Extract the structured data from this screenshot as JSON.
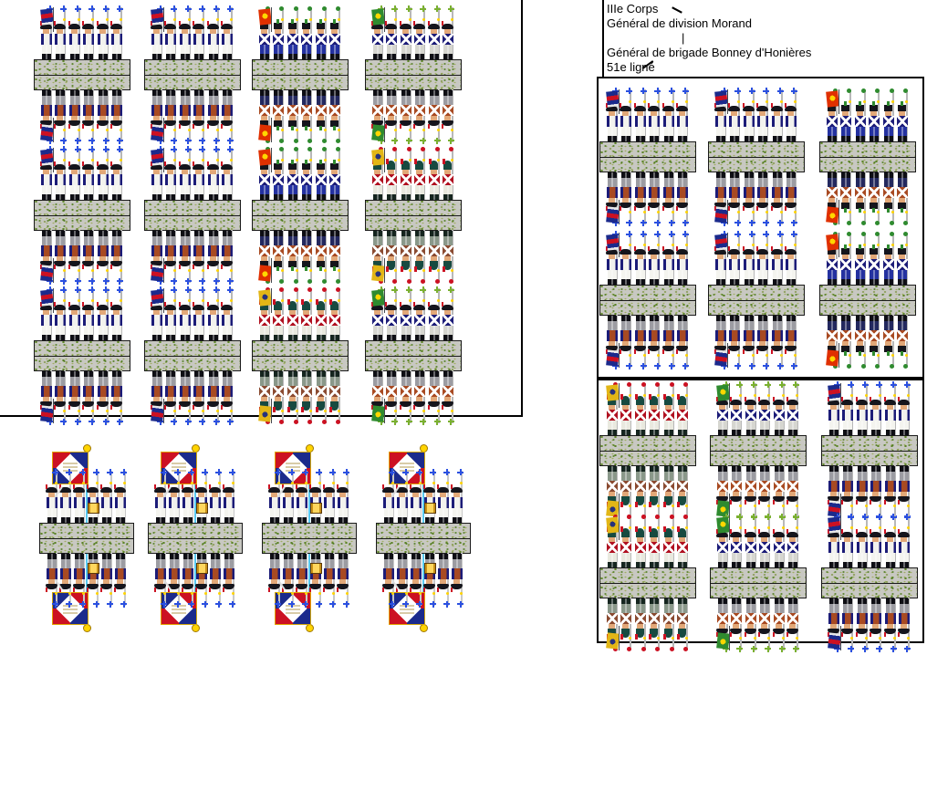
{
  "org_chart": {
    "corps": "IIIe Corps",
    "division": "Général de division Morand",
    "connector": "|",
    "brigade": "Général de brigade Bonney d'Honières",
    "regiment": "51e ligné"
  },
  "palette": {
    "flag_red": "#cc1122",
    "flag_blue": "#1b2a8c",
    "gold": "#e6b400",
    "finial_yellow": "#ffd400",
    "pole_cyan": "#58c8f0",
    "base_gray": "#c8c8c2",
    "camo_green": "#4e7c1e",
    "camo_olive": "#7d9440",
    "border_black": "#000000",
    "background": "#ffffff"
  },
  "flags": {
    "bluered": {
      "pattern": "stripes",
      "colors": [
        "#1b2a8c",
        "#cc1122",
        "#e8e8e8"
      ]
    },
    "orange": {
      "pattern": "emblem",
      "colors": [
        "#e03000",
        "#ffd700"
      ]
    },
    "green": {
      "pattern": "emblem",
      "colors": [
        "#2f8b2f",
        "#ffd700"
      ]
    },
    "gold": {
      "pattern": "emblem",
      "colors": [
        "#e2b616",
        "#26327c"
      ]
    }
  },
  "variants": {
    "fusilier": {
      "label": "fusilier-white-breeches",
      "hat_style": "bicorne",
      "hat": "#15151c",
      "plume": "#cc1122",
      "face": "#e2a878",
      "coat": "#1c1c78",
      "chest": "#f2f2ee",
      "belts": "none",
      "legs": "#f4f4ef",
      "boots": "#0e0e14",
      "musket": "#b8b8b8",
      "tip_style": "cross",
      "tip_color": "#2b50e0",
      "pack_chest": "#a84a22",
      "pack_legs": "#9c9ca2",
      "flag": "bluered"
    },
    "voltigeur": {
      "label": "voltigeur-blue-trousers",
      "hat_style": "shako",
      "hat": "#15151c",
      "pompom": "#2f8b2f",
      "plume": "#2f8b2f",
      "face": "#e2a878",
      "coat": "#1c1c78",
      "chest": "#1c1c78",
      "belts": "x",
      "legs": "#2431a0",
      "boots": "#0e0e14",
      "musket": "#b8b8b8",
      "tip_style": "dot",
      "tip_color": "#2f8b2f",
      "pack_chest": "#a84a22",
      "pack_legs": "#23285e",
      "flag": "orange"
    },
    "grenadier": {
      "label": "grenadier-teal-bearskin",
      "hat_style": "bearskin",
      "hat": "#174a40",
      "plume": "#cc1122",
      "face": "#e2a878",
      "coat": "#1c1c78",
      "chest": "#b01020",
      "belts": "x",
      "legs": "#e9e9df",
      "boots": "#15251f",
      "musket": "#b8b8b8",
      "tip_style": "dot",
      "tip_color": "#cc1122",
      "pack_chest": "#8a4a30",
      "pack_legs": "#8a988a",
      "flag": "gold"
    },
    "fusilier_gray": {
      "label": "fusilier-gray-trousers-green-flag",
      "hat_style": "bicorne",
      "hat": "#15151c",
      "plume": "#cc1122",
      "face": "#e2a878",
      "coat": "#1c1c78",
      "chest": "#1c1c78",
      "belts": "x",
      "legs": "#d6d6d0",
      "boots": "#0e0e14",
      "musket": "#b8b8b8",
      "tip_style": "cross",
      "tip_color": "#7ab030",
      "pack_chest": "#a84a22",
      "pack_legs": "#9c9ca2",
      "flag": "green"
    },
    "command": {
      "label": "command-stand-officers-drummer",
      "hat_style": "bicorne",
      "hat": "#15151c",
      "plume": "#cc1122",
      "face": "#e2a878",
      "coat": "#1c1c78",
      "chest": "#f2f2ee",
      "belts": "none",
      "legs": "#f4f4ef",
      "boots": "#0e0e14",
      "musket": "#c8c8c8",
      "tip_style": "cross",
      "tip_color": "#2b50e0",
      "pack_chest": "#a84a22",
      "pack_legs": "#9c9ca2",
      "flag": null
    }
  },
  "groups": [
    {
      "id": "left-grid",
      "name": "brigade-sheet-left",
      "units": [
        [
          "fusilier",
          "fusilier",
          "voltigeur",
          "fusilier_gray"
        ],
        [
          "fusilier",
          "fusilier",
          "voltigeur",
          "grenadier"
        ],
        [
          "fusilier",
          "fusilier",
          "grenadier",
          "fusilier_gray"
        ]
      ]
    },
    {
      "id": "command-row",
      "name": "command-stands-with-regimental-colours",
      "units": [
        [
          "command",
          "command",
          "command",
          "command"
        ]
      ]
    },
    {
      "id": "right-upper",
      "name": "51e-ligne-upper-frame",
      "units": [
        [
          "fusilier",
          "fusilier",
          "voltigeur"
        ],
        [
          "fusilier",
          "fusilier",
          "voltigeur"
        ]
      ]
    },
    {
      "id": "right-lower",
      "name": "51e-ligne-lower-frame",
      "units": [
        [
          "grenadier",
          "fusilier_gray",
          "fusilier"
        ],
        [
          "grenadier",
          "fusilier_gray",
          "fusilier"
        ]
      ]
    }
  ]
}
